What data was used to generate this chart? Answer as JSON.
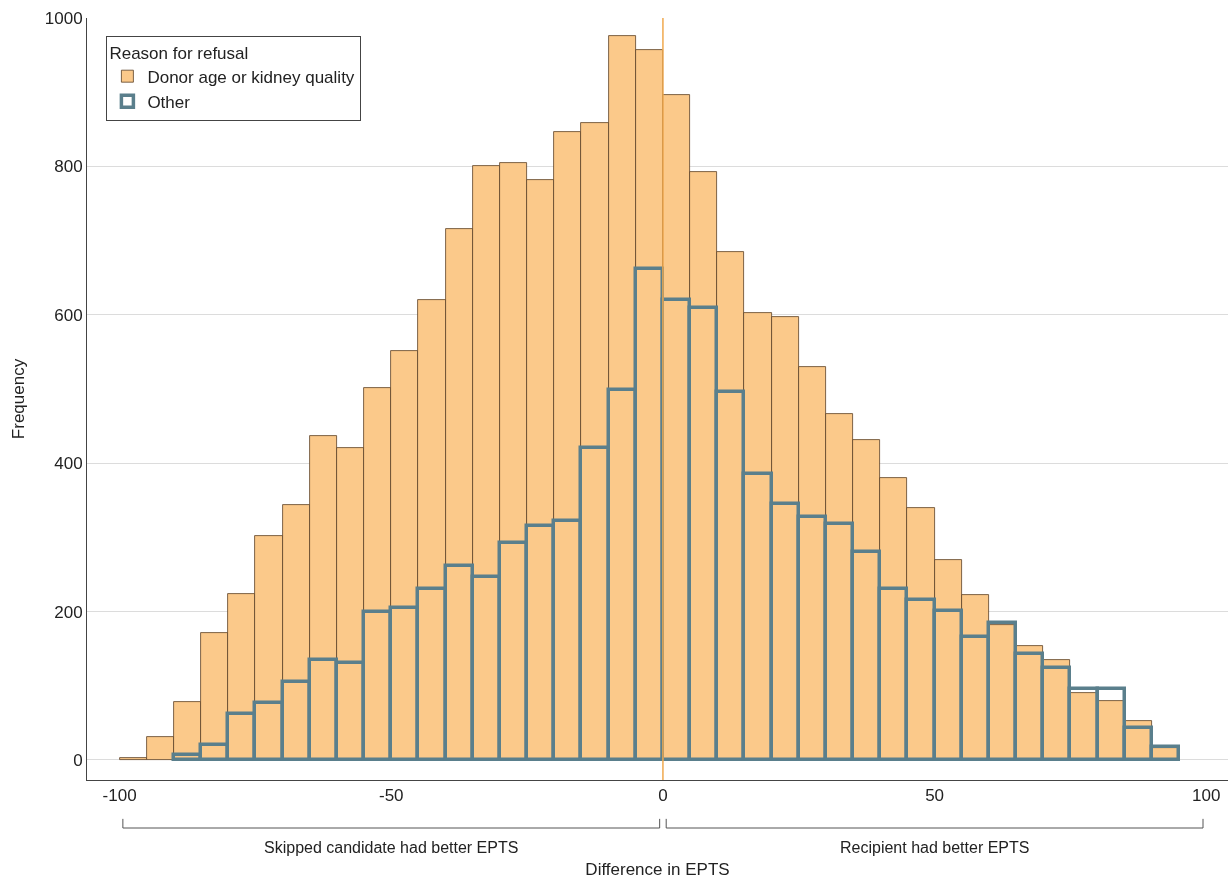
{
  "chart_data": {
    "type": "histogram",
    "xlabel": "Difference in EPTS",
    "ylabel": "Frequency",
    "legend_title": "Reason for refusal",
    "bins": [
      -100,
      -95,
      -90,
      -85,
      -80,
      -75,
      -70,
      -65,
      -60,
      -55,
      -50,
      -45,
      -40,
      -35,
      -30,
      -25,
      -20,
      -15,
      -10,
      -5,
      0,
      5,
      10,
      15,
      20,
      25,
      30,
      35,
      40,
      45,
      50,
      55,
      60,
      65,
      70,
      75,
      80,
      85,
      90,
      95
    ],
    "series": [
      {
        "name": "Donor age or kidney quality",
        "color": "#fbc98a",
        "values": [
          3,
          31,
          78,
          171,
          224,
          302,
          343,
          437,
          420,
          501,
          551,
          620,
          716,
          801,
          805,
          782,
          847,
          858,
          976,
          957,
          896,
          792,
          684,
          603,
          597,
          530,
          466,
          431,
          380,
          339,
          269,
          223,
          182,
          154,
          135,
          90,
          80,
          52,
          16
        ]
      },
      {
        "name": "Other",
        "color": "#5a7f8c",
        "values": [
          null,
          null,
          7,
          20,
          62,
          77,
          105,
          135,
          131,
          200,
          205,
          230,
          262,
          246,
          292,
          315,
          322,
          420,
          499,
          662,
          620,
          609,
          496,
          385,
          345,
          327,
          318,
          280,
          230,
          215,
          201,
          166,
          184,
          143,
          124,
          96,
          96,
          43,
          18
        ]
      }
    ],
    "xlim": [
      -106,
      104
    ],
    "xticks": [
      -100,
      -50,
      0,
      50,
      100
    ],
    "ylim": [
      -27,
      1000
    ],
    "yticks": [
      0,
      200,
      400,
      600,
      800,
      1000
    ],
    "ref_lines": [
      {
        "axis": "x",
        "value": 0,
        "color": "#f0a94e"
      }
    ],
    "annotations": [
      "Skipped candidate had better EPTS",
      "Recipient had better EPTS"
    ],
    "grid": "y",
    "legend": "top left"
  }
}
